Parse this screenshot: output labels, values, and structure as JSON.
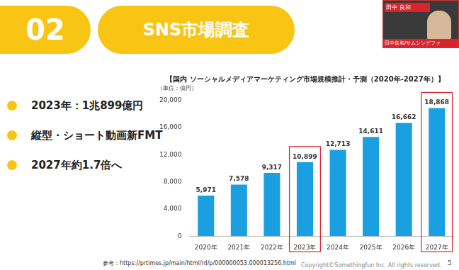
{
  "chart_data": {
    "type": "bar",
    "title": "【国内 ソーシャルメディアマーケティング市場規模推計・予測（2020年-2027年）】",
    "subtitle": "（単位：億円）",
    "categories": [
      "2020年",
      "2021年",
      "2022年",
      "2023年",
      "2024年",
      "2025年",
      "2026年",
      "2027年"
    ],
    "values": [
      5971,
      7578,
      9317,
      10899,
      12713,
      14611,
      16662,
      18868
    ],
    "value_labels": [
      "5,971",
      "7,578",
      "9,317",
      "10,899",
      "12,713",
      "14,611",
      "16,662",
      "18,868"
    ],
    "data_labels": true,
    "color": "#1a9fe0",
    "ylim": [
      0,
      20000
    ],
    "yticks": [
      0,
      {
        "value": 4000,
        "label": "4,000"
      },
      {
        "value": 8000,
        "label": "8,000"
      },
      {
        "value": 12000,
        "label": "12,000"
      },
      {
        "value": 16000,
        "label": "16,000"
      },
      {
        "value": 20000,
        "label": "20,000"
      }
    ],
    "grid": false
  },
  "slide": {
    "number": "02",
    "heading": "SNS市場調査",
    "bullets": [
      "2023年：1兆899億円",
      "縦型・ショート動画新FMT",
      "2027年約1.7倍へ"
    ],
    "highlighted_categories": [
      "2023年",
      "2027年"
    ],
    "reference": "参考：https://prtimes.jp/main/html/rd/p/000000053.000013256.html",
    "copyright": "Copyright©Somethingfun Inc. All rights reserved.",
    "page": "5",
    "camera_name": "田中 良和",
    "camera_label": "田中良和/サムシングファ"
  }
}
